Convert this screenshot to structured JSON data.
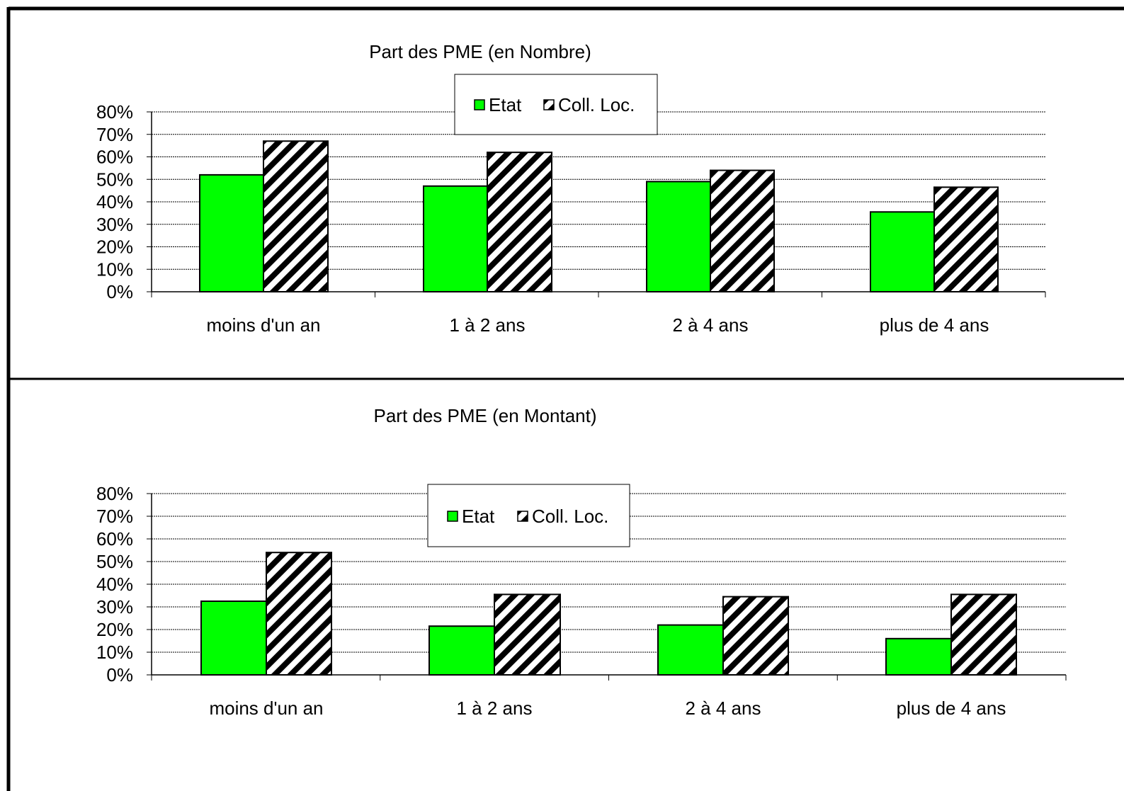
{
  "colors": {
    "etat": "#00ff00",
    "coll_loc_stripe": "#000000",
    "coll_loc_bg": "#ffffff",
    "grid": "#000000"
  },
  "chart_data": [
    {
      "type": "bar",
      "title": "Part  des PME (en Nombre)",
      "categories": [
        "moins d'un an",
        "1 à 2 ans",
        "2 à 4 ans",
        "plus de 4 ans"
      ],
      "series": [
        {
          "name": "Etat",
          "values": [
            52,
            47,
            49,
            35.5
          ],
          "pattern": "solid-green"
        },
        {
          "name": "Coll. Loc.",
          "values": [
            67,
            62,
            54,
            46.5
          ],
          "pattern": "diagonal-stripes"
        }
      ],
      "y_ticks": [
        "0%",
        "10%",
        "20%",
        "30%",
        "40%",
        "50%",
        "60%",
        "70%",
        "80%"
      ],
      "ylim": [
        0,
        80
      ],
      "grid": true,
      "legend_position": "top-center"
    },
    {
      "type": "bar",
      "title": "Part des PME (en Montant)",
      "categories": [
        "moins d'un an",
        "1 à 2 ans",
        "2 à 4 ans",
        "plus de 4 ans"
      ],
      "series": [
        {
          "name": "Etat",
          "values": [
            32.5,
            21.5,
            22,
            16
          ],
          "pattern": "solid-green"
        },
        {
          "name": "Coll. Loc.",
          "values": [
            54,
            35.5,
            34.5,
            35.5
          ],
          "pattern": "diagonal-stripes"
        }
      ],
      "y_ticks": [
        "0%",
        "10%",
        "20%",
        "30%",
        "40%",
        "50%",
        "60%",
        "70%",
        "80%"
      ],
      "ylim": [
        0,
        80
      ],
      "grid": true,
      "legend_position": "top-center"
    }
  ]
}
